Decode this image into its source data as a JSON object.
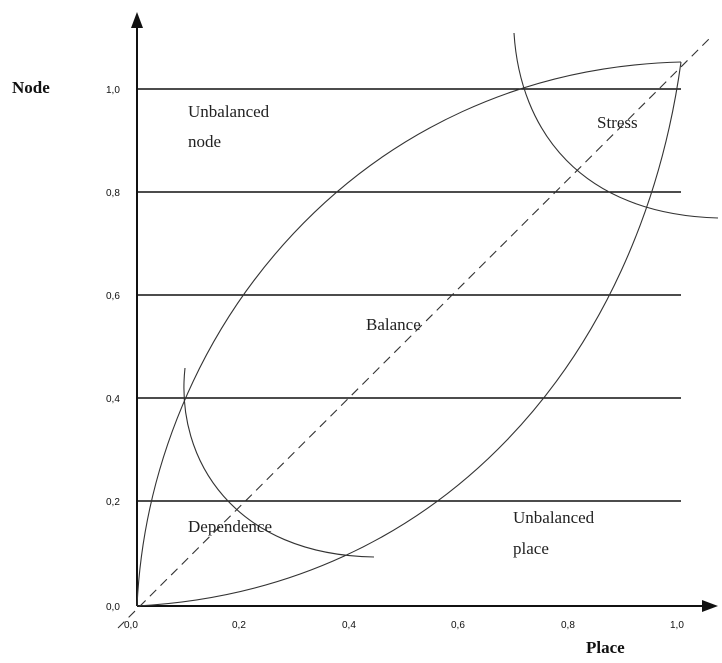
{
  "diagram": {
    "y_axis_title": "Node",
    "x_axis_title": "Place",
    "y_ticks": [
      "0,0",
      "0,2",
      "0,4",
      "0,6",
      "0,8",
      "1,0"
    ],
    "x_ticks": [
      "0,0",
      "0,2",
      "0,4",
      "0,6",
      "0,8",
      "1,0"
    ],
    "regions": {
      "unbalanced_node": [
        "Unbalanced",
        "node"
      ],
      "stress": "Stress",
      "balance": "Balance",
      "dependence": "Dependence",
      "unbalanced_place": [
        "Unbalanced",
        "place"
      ]
    }
  }
}
